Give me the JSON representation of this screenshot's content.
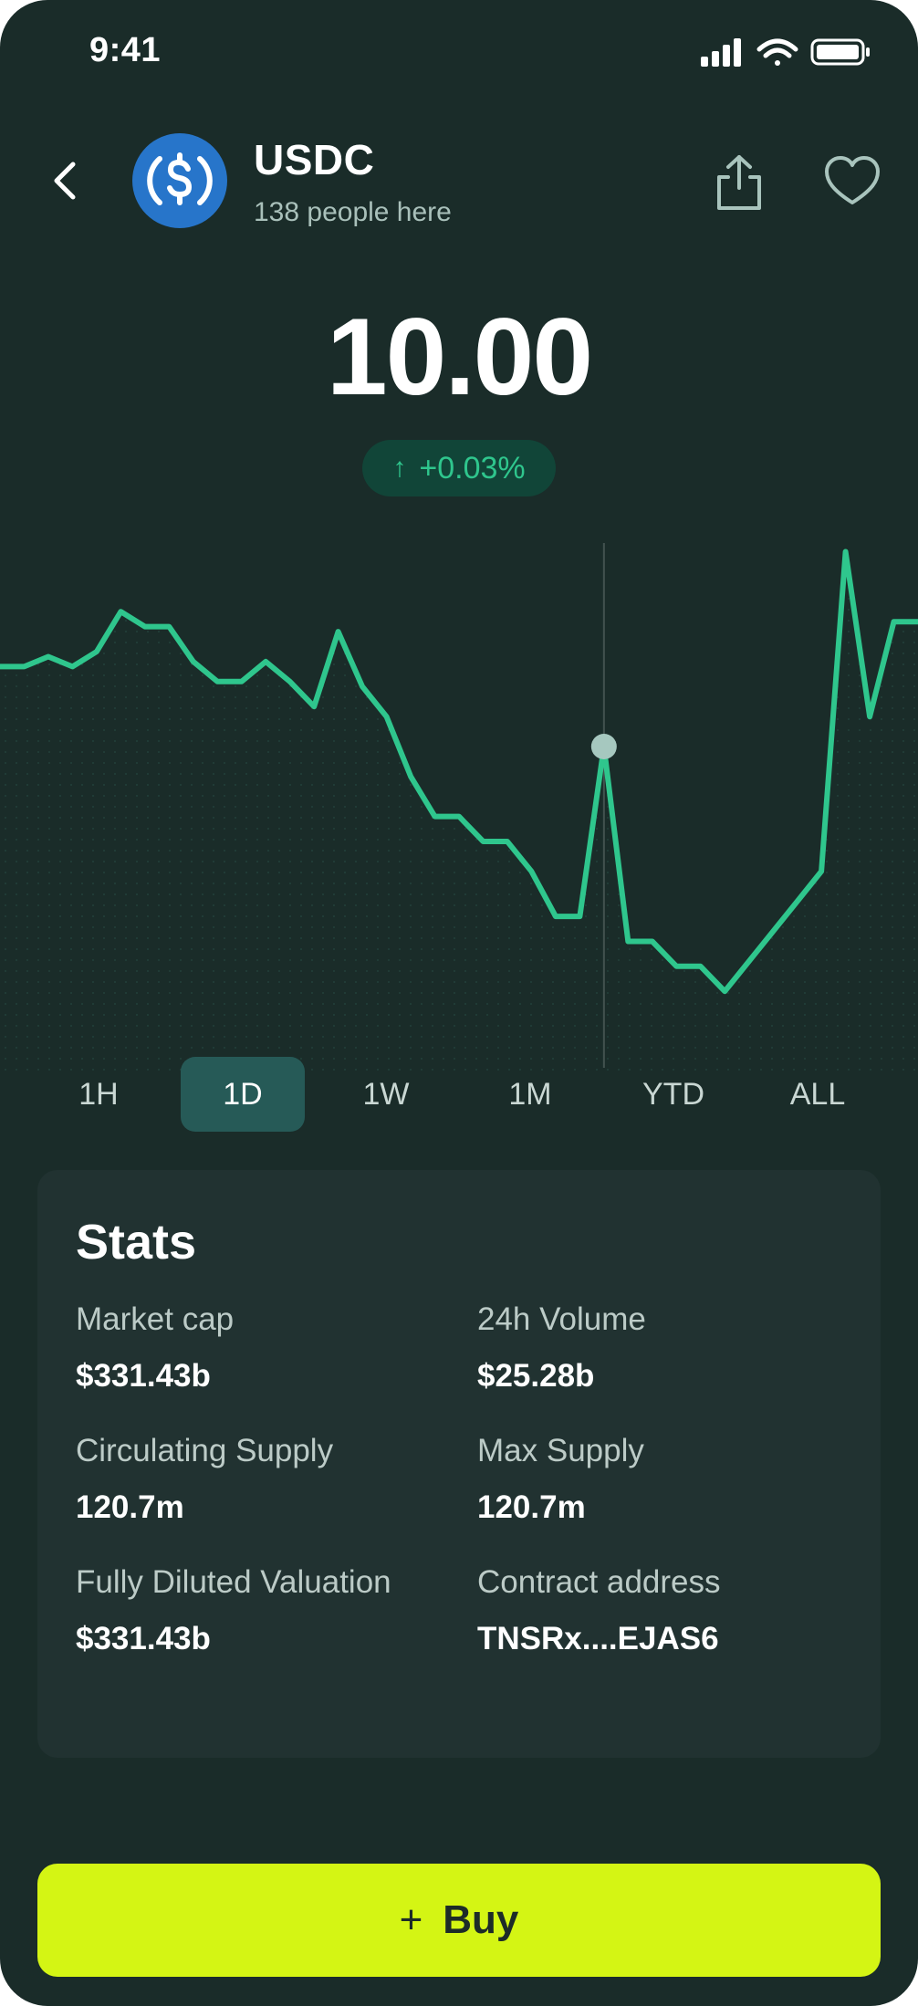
{
  "status_bar": {
    "time": "9:41"
  },
  "header": {
    "name": "USDC",
    "subtitle": "138 people here"
  },
  "price": {
    "value": "10.00",
    "change": "+0.03%"
  },
  "chart_data": {
    "type": "line",
    "series": [
      {
        "values": [
          63,
          63,
          65,
          63,
          66,
          74,
          71,
          71,
          64,
          60,
          60,
          64,
          60,
          55,
          70,
          59,
          53,
          41,
          33,
          33,
          28,
          28,
          22,
          13,
          13,
          47,
          8,
          8,
          3,
          3,
          -2,
          4,
          10,
          16,
          22,
          86,
          53,
          72,
          72
        ]
      }
    ],
    "ylim": [
      -10,
      85
    ],
    "grid": false,
    "selected_index": 25
  },
  "timeframes": [
    "1H",
    "1D",
    "1W",
    "1M",
    "YTD",
    "ALL"
  ],
  "active_timeframe": "1D",
  "stats": {
    "title": "Stats",
    "items": [
      {
        "label": "Market cap",
        "value": "$331.43b"
      },
      {
        "label": "24h Volume",
        "value": "$25.28b"
      },
      {
        "label": "Circulating Supply",
        "value": "120.7m"
      },
      {
        "label": "Max Supply",
        "value": "120.7m"
      },
      {
        "label": "Fully Diluted Valuation",
        "value": "$331.43b"
      },
      {
        "label": "Contract address",
        "value": "TNSRx....EJAS6"
      }
    ]
  },
  "buy_button": {
    "label": "Buy"
  },
  "colors": {
    "background": "#1a2c29",
    "accent": "#2fc68d",
    "buy": "#d4f514"
  }
}
